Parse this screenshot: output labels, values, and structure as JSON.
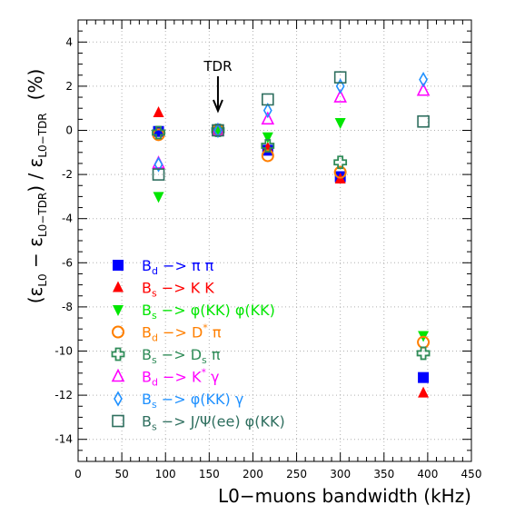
{
  "chart_data": {
    "type": "scatter",
    "xlabel": "L0−muons bandwidth (kHz)",
    "ylabel_parts": {
      "open": "(ε",
      "sub1": "L0",
      "minus": " − ε",
      "sub2": "L0−TDR",
      "close": ") / ε",
      "sub3": "L0−TDR",
      "unit": "(%)"
    },
    "xlim": [
      0,
      450
    ],
    "ylim": [
      -15,
      5
    ],
    "x_ticks": [
      0,
      50,
      100,
      150,
      200,
      250,
      300,
      350,
      400,
      450
    ],
    "y_ticks": [
      -14,
      -12,
      -10,
      -8,
      -6,
      -4,
      -2,
      0,
      2,
      4
    ],
    "grid": true,
    "legend_position": "bottom-left",
    "annotation": {
      "text": "TDR",
      "x": 160
    },
    "series": [
      {
        "name": "B_d −> π π",
        "label_main": "B",
        "label_sub": "d",
        "label_sup": "",
        "label_rest": " −> π π",
        "marker": "square-filled",
        "color": "#0000ff",
        "x": [
          92,
          160,
          217,
          300,
          395
        ],
        "y": [
          -0.05,
          0.0,
          -0.9,
          -2.1,
          -11.2
        ]
      },
      {
        "name": "B_s −> K K",
        "label_main": "B",
        "label_sub": "s",
        "label_sup": "",
        "label_rest": " −> K K",
        "marker": "triangle-up-filled",
        "color": "#ff0000",
        "x": [
          92,
          160,
          217,
          300,
          395
        ],
        "y": [
          0.8,
          0.0,
          -0.8,
          -2.2,
          -11.9
        ]
      },
      {
        "name": "B_s −> φ(KK) φ(KK)",
        "label_main": "B",
        "label_sub": "s",
        "label_sup": "",
        "label_rest": " −> φ(KK) φ(KK)",
        "marker": "triangle-down-filled",
        "color": "#00e600",
        "x": [
          92,
          160,
          217,
          300,
          395
        ],
        "y": [
          -3.0,
          0.0,
          -0.3,
          0.35,
          -9.3
        ]
      },
      {
        "name": "B_d −> D* π",
        "label_main": "B",
        "label_sub": "d",
        "label_sup": "*",
        "label_rest": " −> D",
        "label_tail": " π",
        "marker": "circle-open",
        "color": "#ff7f00",
        "x": [
          92,
          160,
          217,
          300,
          395
        ],
        "y": [
          -0.2,
          0.0,
          -1.15,
          -1.9,
          -9.6
        ]
      },
      {
        "name": "B_s −> D_s π",
        "label_main": "B",
        "label_sub": "s",
        "label_sup": "",
        "label_rest": " −> D",
        "label_tail_sub": "s",
        "label_tail": " π",
        "marker": "cross-open",
        "color": "#2e8b57",
        "x": [
          92,
          160,
          217,
          300,
          395
        ],
        "y": [
          -0.1,
          0.0,
          -0.7,
          -1.45,
          -10.1
        ]
      },
      {
        "name": "B_d −> K* γ",
        "label_main": "B",
        "label_sub": "d",
        "label_sup": "*",
        "label_rest": " −> K",
        "label_tail": " γ",
        "marker": "triangle-up-open",
        "color": "#ff00ff",
        "x": [
          92,
          160,
          217,
          300,
          395
        ],
        "y": [
          -1.5,
          0.0,
          0.5,
          1.5,
          1.8
        ]
      },
      {
        "name": "B_s −> φ(KK) γ",
        "label_main": "B",
        "label_sub": "s",
        "label_sup": "",
        "label_rest": " −> φ(KK) γ",
        "marker": "diamond-open",
        "color": "#1e90ff",
        "x": [
          92,
          160,
          217,
          300,
          395
        ],
        "y": [
          -1.55,
          0.0,
          0.9,
          2.0,
          2.3
        ]
      },
      {
        "name": "B_s −> J/Ψ(ee) φ(KK)",
        "label_main": "B",
        "label_sub": "s",
        "label_sup": "",
        "label_rest": " −> J/Ψ(ee) φ(KK)",
        "marker": "square-open",
        "color": "#2f6f5f",
        "x": [
          92,
          160,
          217,
          300,
          395
        ],
        "y": [
          -2.0,
          0.0,
          1.4,
          2.4,
          0.4
        ]
      }
    ]
  }
}
